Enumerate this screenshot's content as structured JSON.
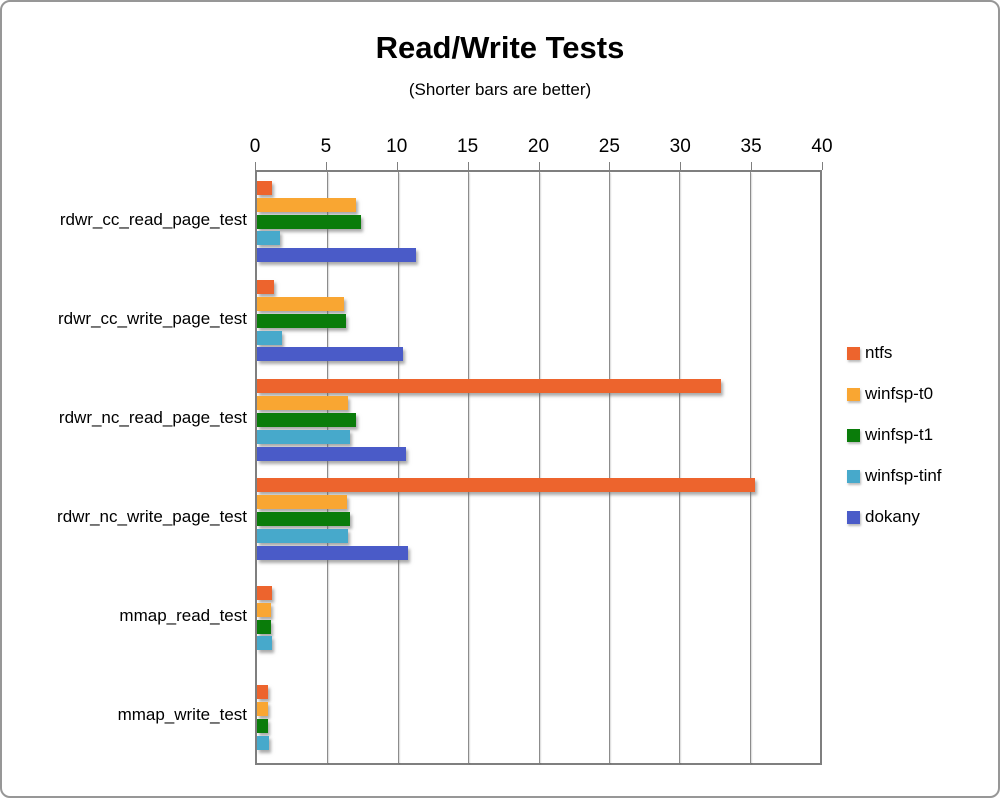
{
  "chart_data": {
    "type": "bar",
    "orientation": "horizontal",
    "title": "Read/Write Tests",
    "subtitle": "(Shorter bars are better)",
    "categories": [
      "rdwr_cc_read_page_test",
      "rdwr_cc_write_page_test",
      "rdwr_nc_read_page_test",
      "rdwr_nc_write_page_test",
      "mmap_read_test",
      "mmap_write_test"
    ],
    "series": [
      {
        "name": "ntfs",
        "color": "#ED642D",
        "values": [
          1.1,
          1.2,
          33.0,
          35.4,
          1.1,
          0.8
        ]
      },
      {
        "name": "winfsp-t0",
        "color": "#F9A632",
        "values": [
          7.0,
          6.2,
          6.5,
          6.4,
          1.0,
          0.8
        ]
      },
      {
        "name": "winfsp-t1",
        "color": "#0A7C0A",
        "values": [
          7.4,
          6.3,
          7.0,
          6.6,
          1.0,
          0.8
        ]
      },
      {
        "name": "winfsp-tinf",
        "color": "#47A9CB",
        "values": [
          1.6,
          1.8,
          6.6,
          6.5,
          1.1,
          0.85
        ]
      },
      {
        "name": "dokany",
        "color": "#4A5BC8",
        "values": [
          11.3,
          10.4,
          10.6,
          10.7,
          null,
          null
        ]
      }
    ],
    "xlim": [
      0,
      40
    ],
    "xticks": [
      0,
      5,
      10,
      15,
      20,
      25,
      30,
      35,
      40
    ],
    "grid": true,
    "legend_position": "right",
    "axis_labels_position": "top"
  },
  "colors": {
    "gridline": "#8C8C8C",
    "plot_border": "#7F7F7F",
    "frame_border": "#979797",
    "background": "#FFFFFF",
    "text": "#000000"
  }
}
